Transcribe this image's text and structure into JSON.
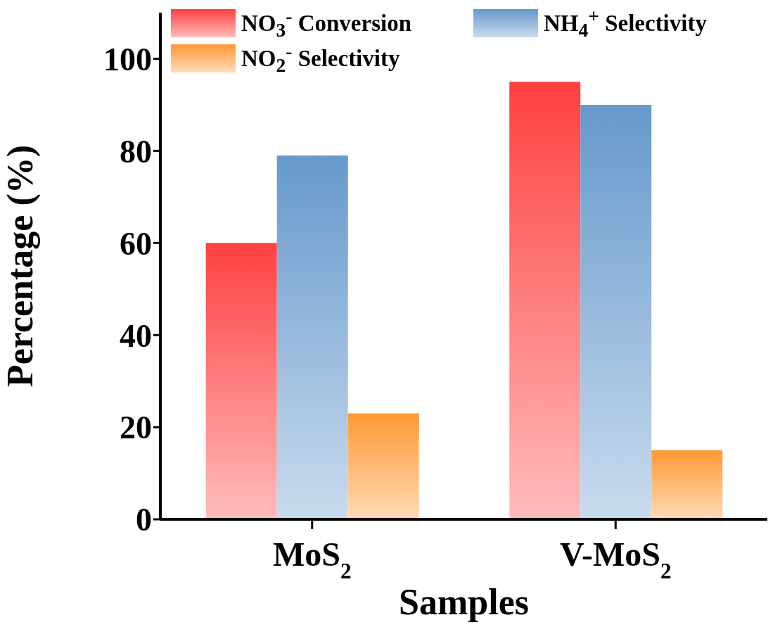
{
  "chart_data": {
    "type": "bar",
    "xlabel": "Samples",
    "ylabel": "Percentage (%)",
    "categories": [
      "MoS$_{2}$",
      "V-MoS$_{2}$"
    ],
    "series": [
      {
        "name": "NO$_{3}$$^{-}$ Conversion",
        "color": "#ff4040",
        "values": [
          60,
          95
        ]
      },
      {
        "name": "NH$_{4}$$^{+}$ Selectivity",
        "color": "#6699cc",
        "values": [
          79,
          90
        ]
      },
      {
        "name": "NO$_{2}$$^{-}$ Selectivity",
        "color": "#ff9933",
        "values": [
          23,
          15
        ]
      }
    ],
    "ylim": [
      0,
      110
    ],
    "yticks": [
      0,
      20,
      40,
      60,
      80,
      100
    ],
    "grid": false,
    "legend": "top"
  }
}
